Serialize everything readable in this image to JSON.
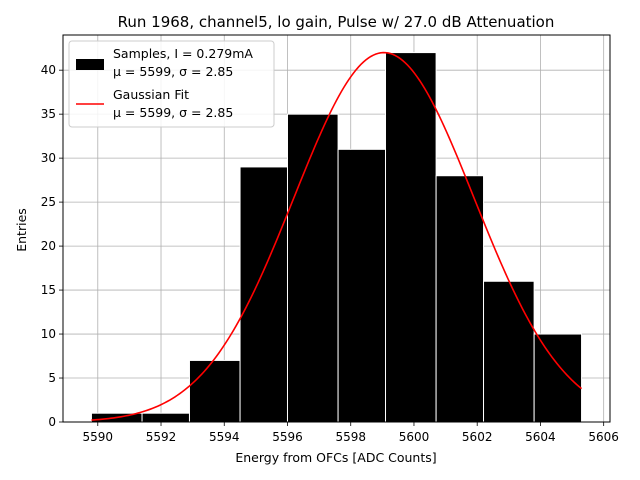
{
  "chart_data": {
    "type": "bar",
    "title": "Run 1968, channel5, lo gain, Pulse w/ 27.0 dB Attenuation",
    "xlabel": "Energy from OFCs [ADC Counts]",
    "ylabel": "Entries",
    "xlim": [
      5588.9,
      5606.2
    ],
    "ylim": [
      0,
      44
    ],
    "grid": true,
    "xticks": [
      5590,
      5592,
      5594,
      5596,
      5598,
      5600,
      5602,
      5604,
      5606
    ],
    "yticks": [
      0,
      5,
      10,
      15,
      20,
      25,
      30,
      35,
      40
    ],
    "histogram": {
      "name": "Samples, I = 0.279mA",
      "stats": "μ = 5599, σ = 2.85",
      "bin_edges": [
        5589.8,
        5591.4,
        5592.9,
        5594.5,
        5596.0,
        5597.6,
        5599.1,
        5600.7,
        5602.2,
        5603.8,
        5605.3
      ],
      "counts": [
        1,
        1,
        7,
        29,
        35,
        31,
        42,
        28,
        16,
        10
      ],
      "color": "#000000"
    },
    "fit": {
      "name": "Gaussian Fit",
      "stats": "μ = 5599, σ = 2.85",
      "mu": 5599.05,
      "sigma": 2.85,
      "amplitude": 42,
      "x_range": [
        5589.8,
        5605.3
      ],
      "color": "#ff0000"
    },
    "legend_position": "top-left"
  }
}
